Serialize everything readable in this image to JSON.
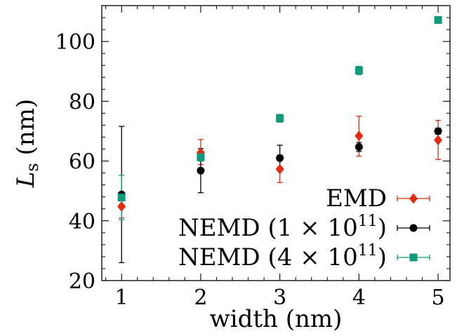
{
  "chart_data": {
    "type": "scatter",
    "title": "",
    "xlabel": "width (nm)",
    "ylabel_main": "L",
    "ylabel_sub": "s",
    "ylabel_unit": " (nm)",
    "xlim": [
      0.75,
      5.15
    ],
    "ylim": [
      20,
      112
    ],
    "xticks": [
      1,
      2,
      3,
      4,
      5
    ],
    "yticks": [
      20,
      40,
      60,
      80,
      100
    ],
    "grid": false,
    "legend_position": "bottom-right",
    "series": [
      {
        "name": "EMD",
        "color": "#e32b14",
        "marker": "diamond",
        "x": [
          1,
          2,
          3,
          4,
          5
        ],
        "y": [
          44.8,
          62.8,
          57.3,
          68.4,
          67.0
        ],
        "yerr_low": [
          3.8,
          4.0,
          4.5,
          6.8,
          6.5
        ],
        "yerr_high": [
          3.8,
          4.4,
          4.7,
          6.6,
          6.6
        ]
      },
      {
        "name_prefix": "NEMD (1 × 10",
        "name_sup": "11",
        "name_suffix": ")",
        "color": "#000000",
        "marker": "circle",
        "x": [
          1,
          2,
          3,
          4,
          5
        ],
        "y": [
          48.8,
          56.8,
          61.0,
          64.7,
          70.0
        ],
        "yerr_low": [
          22.8,
          7.4,
          4.3,
          1.5,
          1.0
        ],
        "yerr_high": [
          22.8,
          7.4,
          4.3,
          1.5,
          1.0
        ]
      },
      {
        "name_prefix": "NEMD (4 × 10",
        "name_sup": "11",
        "name_suffix": ")",
        "color": "#0f9b79",
        "marker": "square",
        "x": [
          1,
          2,
          3,
          4,
          5
        ],
        "y": [
          47.8,
          61.3,
          74.3,
          90.3,
          107.2
        ],
        "yerr_low": [
          7.4,
          1.3,
          1.3,
          1.4,
          0.6
        ],
        "yerr_high": [
          7.4,
          1.3,
          1.3,
          1.4,
          0.6
        ]
      }
    ]
  }
}
